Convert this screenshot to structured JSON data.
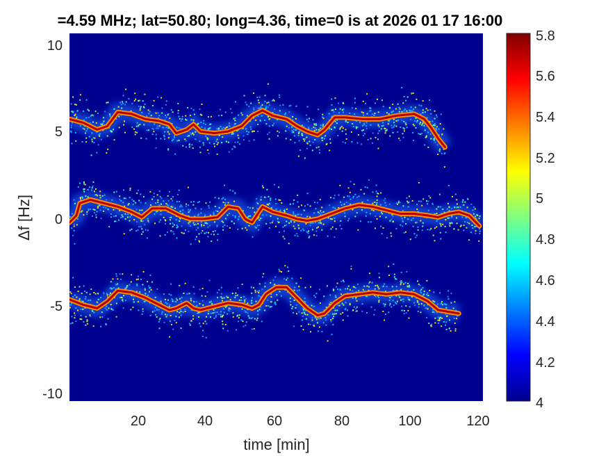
{
  "chart_data": {
    "type": "heatmap",
    "title": "=4.59 MHz;  lat=50.80; long=4.36, time=0 is at 2026 01 17 16:00",
    "xlabel": "time [min]",
    "ylabel": "Δf [Hz]",
    "xlim": [
      0,
      120
    ],
    "ylim": [
      -10.5,
      10.5
    ],
    "x_ticks": [
      "20",
      "40",
      "60",
      "80",
      "100",
      "120"
    ],
    "y_ticks": [
      "10",
      "5",
      "0",
      "-5",
      "-10"
    ],
    "colorbar": {
      "limits": [
        4,
        5.8
      ],
      "ticks": [
        "5.8",
        "5.6",
        "5.4",
        "5.2",
        "5",
        "4.8",
        "4.6",
        "4.4",
        "4.2",
        "4"
      ],
      "colormap": "jet"
    },
    "background_value": 4,
    "traces": [
      {
        "name": "",
        "points": [
          [
            0,
            5.6
          ],
          [
            4,
            5.4
          ],
          [
            8,
            5.0
          ],
          [
            11,
            5.2
          ],
          [
            14,
            6.0
          ],
          [
            18,
            5.9
          ],
          [
            22,
            5.6
          ],
          [
            26,
            5.5
          ],
          [
            29,
            5.3
          ],
          [
            31,
            4.8
          ],
          [
            34,
            5.0
          ],
          [
            36,
            5.3
          ],
          [
            38,
            4.9
          ],
          [
            42,
            4.8
          ],
          [
            46,
            4.9
          ],
          [
            50,
            5.2
          ],
          [
            53,
            5.8
          ],
          [
            56,
            6.1
          ],
          [
            59,
            5.8
          ],
          [
            63,
            5.6
          ],
          [
            66,
            5.2
          ],
          [
            69,
            4.9
          ],
          [
            72,
            4.7
          ],
          [
            74,
            5.0
          ],
          [
            77,
            5.7
          ],
          [
            80,
            5.7
          ],
          [
            85,
            5.6
          ],
          [
            90,
            5.6
          ],
          [
            95,
            5.8
          ],
          [
            100,
            5.9
          ],
          [
            103,
            5.6
          ],
          [
            105,
            5.1
          ],
          [
            107,
            4.5
          ],
          [
            109,
            4.0
          ]
        ],
        "peak_value": 5.8
      },
      {
        "name": "",
        "points": [
          [
            0,
            -0.3
          ],
          [
            2,
            0.1
          ],
          [
            3,
            0.8
          ],
          [
            6,
            1.0
          ],
          [
            10,
            0.8
          ],
          [
            14,
            0.6
          ],
          [
            18,
            0.3
          ],
          [
            21,
            0.0
          ],
          [
            24,
            0.5
          ],
          [
            28,
            0.5
          ],
          [
            32,
            0.1
          ],
          [
            35,
            -0.1
          ],
          [
            39,
            -0.1
          ],
          [
            43,
            0.0
          ],
          [
            46,
            0.6
          ],
          [
            49,
            0.5
          ],
          [
            51,
            -0.1
          ],
          [
            53,
            -0.3
          ],
          [
            56,
            0.6
          ],
          [
            59,
            0.3
          ],
          [
            63,
            0.1
          ],
          [
            66,
            -0.1
          ],
          [
            69,
            -0.2
          ],
          [
            72,
            -0.1
          ],
          [
            76,
            0.2
          ],
          [
            80,
            0.5
          ],
          [
            84,
            0.7
          ],
          [
            88,
            0.6
          ],
          [
            92,
            0.4
          ],
          [
            96,
            0.2
          ],
          [
            100,
            0.2
          ],
          [
            104,
            0.1
          ],
          [
            107,
            0.0
          ],
          [
            110,
            0.2
          ],
          [
            113,
            0.3
          ],
          [
            116,
            0.1
          ],
          [
            119,
            -0.5
          ]
        ],
        "peak_value": 5.8
      },
      {
        "name": "",
        "points": [
          [
            0,
            -4.7
          ],
          [
            4,
            -5.0
          ],
          [
            8,
            -5.2
          ],
          [
            11,
            -4.8
          ],
          [
            14,
            -4.2
          ],
          [
            18,
            -4.3
          ],
          [
            22,
            -4.6
          ],
          [
            26,
            -5.0
          ],
          [
            29,
            -5.3
          ],
          [
            31,
            -5.2
          ],
          [
            34,
            -4.9
          ],
          [
            36,
            -5.2
          ],
          [
            38,
            -5.3
          ],
          [
            42,
            -5.1
          ],
          [
            46,
            -4.9
          ],
          [
            50,
            -5.0
          ],
          [
            53,
            -5.2
          ],
          [
            55,
            -5.0
          ],
          [
            57,
            -4.4
          ],
          [
            60,
            -4.0
          ],
          [
            63,
            -4.0
          ],
          [
            66,
            -4.6
          ],
          [
            69,
            -5.2
          ],
          [
            72,
            -5.6
          ],
          [
            74,
            -5.5
          ],
          [
            77,
            -4.9
          ],
          [
            80,
            -4.5
          ],
          [
            84,
            -4.4
          ],
          [
            88,
            -4.3
          ],
          [
            92,
            -4.4
          ],
          [
            96,
            -4.3
          ],
          [
            100,
            -4.4
          ],
          [
            104,
            -4.8
          ],
          [
            107,
            -5.3
          ],
          [
            110,
            -5.4
          ],
          [
            113,
            -5.5
          ]
        ],
        "peak_value": 5.8
      }
    ]
  }
}
